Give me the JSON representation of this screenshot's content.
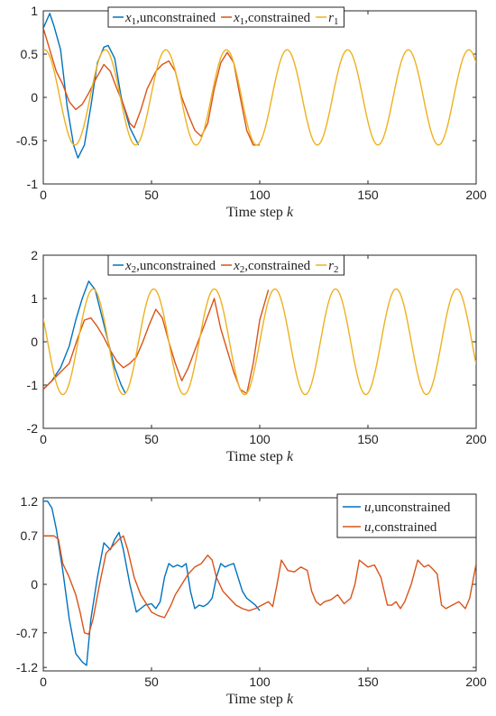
{
  "chart_data": [
    {
      "type": "line",
      "xlabel": "Time step k",
      "xlim": [
        0,
        200
      ],
      "ylim": [
        -1,
        1
      ],
      "xticks": [
        0,
        50,
        100,
        150,
        200
      ],
      "yticks": [
        -1,
        -0.5,
        0,
        0.5,
        1
      ],
      "ytick_labels": [
        "-1",
        "-0.5",
        "0",
        "0.5",
        "1"
      ],
      "legend_position": "top-center",
      "series": [
        {
          "name": "x1,unconstrained",
          "color": "#0072BD",
          "x": [
            0,
            3,
            5,
            8,
            11,
            14,
            16,
            19,
            22,
            25,
            28,
            30,
            33,
            36,
            40,
            44
          ],
          "y": [
            0.8,
            0.97,
            0.82,
            0.55,
            -0.1,
            -0.55,
            -0.7,
            -0.55,
            -0.1,
            0.4,
            0.58,
            0.6,
            0.45,
            0.0,
            -0.35,
            -0.55
          ]
        },
        {
          "name": "x1,constrained",
          "color": "#D95319",
          "x": [
            0,
            3,
            6,
            9,
            12,
            15,
            18,
            21,
            24,
            28,
            31,
            34,
            37,
            40,
            42,
            45,
            48,
            52,
            55,
            58,
            61,
            64,
            67,
            70,
            73,
            76,
            79,
            82,
            85,
            88,
            91,
            94,
            97,
            100
          ],
          "y": [
            0.8,
            0.55,
            0.3,
            0.15,
            -0.05,
            -0.14,
            -0.08,
            0.05,
            0.2,
            0.38,
            0.3,
            0.1,
            -0.08,
            -0.3,
            -0.35,
            -0.15,
            0.1,
            0.3,
            0.38,
            0.42,
            0.3,
            0.0,
            -0.2,
            -0.38,
            -0.45,
            -0.3,
            0.1,
            0.4,
            0.52,
            0.4,
            0.0,
            -0.38,
            -0.55,
            -0.55
          ]
        },
        {
          "name": "r1",
          "color": "#EDB120",
          "sine": true,
          "amplitude": 0.55,
          "period": 28,
          "phase_deg": 82,
          "offset": 0
        }
      ]
    },
    {
      "type": "line",
      "xlabel": "Time step k",
      "xlim": [
        0,
        200
      ],
      "ylim": [
        -2,
        2
      ],
      "xticks": [
        0,
        50,
        100,
        150,
        200
      ],
      "yticks": [
        -2,
        -1,
        0,
        1,
        2
      ],
      "ytick_labels": [
        "-2",
        "-1",
        "0",
        "1",
        "2"
      ],
      "legend_position": "top-center",
      "series": [
        {
          "name": "x2,unconstrained",
          "color": "#0072BD",
          "x": [
            0,
            4,
            8,
            12,
            15,
            18,
            21,
            24,
            27,
            30,
            33,
            36,
            38
          ],
          "y": [
            -1.1,
            -0.9,
            -0.6,
            -0.1,
            0.5,
            1.0,
            1.4,
            1.2,
            0.6,
            0.0,
            -0.6,
            -1.0,
            -1.2
          ]
        },
        {
          "name": "x2,constrained",
          "color": "#D95319",
          "x": [
            0,
            4,
            8,
            12,
            16,
            19,
            22,
            25,
            28,
            31,
            34,
            37,
            40,
            43,
            46,
            49,
            52,
            55,
            58,
            61,
            64,
            67,
            70,
            73,
            76,
            79,
            82,
            85,
            88,
            91,
            94,
            97,
            100,
            104
          ],
          "y": [
            -1.1,
            -0.9,
            -0.7,
            -0.5,
            0.1,
            0.5,
            0.55,
            0.35,
            0.1,
            -0.2,
            -0.45,
            -0.6,
            -0.5,
            -0.35,
            0.0,
            0.4,
            0.75,
            0.55,
            0.0,
            -0.5,
            -0.9,
            -0.6,
            -0.2,
            0.2,
            0.6,
            1.0,
            0.3,
            -0.2,
            -0.7,
            -1.1,
            -1.2,
            -0.5,
            0.5,
            1.2
          ]
        },
        {
          "name": "r2",
          "color": "#EDB120",
          "sine": true,
          "amplitude": 1.22,
          "period": 28,
          "phase_deg": 154,
          "offset": 0
        }
      ]
    },
    {
      "type": "line",
      "xlabel": "Time step k",
      "xlim": [
        0,
        200
      ],
      "ylim": [
        -1.25,
        1.25
      ],
      "xticks": [
        0,
        50,
        100,
        150,
        200
      ],
      "yticks": [
        -1.2,
        -0.7,
        0,
        0.7,
        1.2
      ],
      "ytick_labels": [
        "-1.2",
        "-0.7",
        "0",
        "0.7",
        "1.2"
      ],
      "legend_position": "top-right",
      "series": [
        {
          "name": "u,unconstrained",
          "color": "#0072BD",
          "x": [
            0,
            2,
            4,
            6,
            9,
            12,
            15,
            18,
            20,
            22,
            25,
            28,
            31,
            33,
            35,
            37,
            40,
            43,
            45,
            47,
            50,
            52,
            54,
            56,
            58,
            60,
            62,
            64,
            66,
            68,
            70,
            72,
            74,
            76,
            78,
            80,
            82,
            84,
            86,
            88,
            90,
            92,
            94,
            96,
            98,
            100
          ],
          "y": [
            1.2,
            1.2,
            1.1,
            0.8,
            0.2,
            -0.5,
            -1.0,
            -1.12,
            -1.17,
            -0.5,
            0.1,
            0.6,
            0.5,
            0.65,
            0.75,
            0.5,
            0.0,
            -0.4,
            -0.35,
            -0.3,
            -0.28,
            -0.35,
            -0.25,
            0.1,
            0.3,
            0.25,
            0.28,
            0.25,
            0.3,
            -0.1,
            -0.35,
            -0.3,
            -0.32,
            -0.28,
            -0.2,
            0.1,
            0.3,
            0.25,
            0.28,
            0.3,
            0.1,
            -0.1,
            -0.2,
            -0.25,
            -0.3,
            -0.38
          ]
        },
        {
          "name": "u,constrained",
          "color": "#D95319",
          "x": [
            0,
            2,
            5,
            7,
            9,
            12,
            15,
            17,
            19,
            21,
            23,
            26,
            29,
            32,
            35,
            37,
            39,
            42,
            45,
            48,
            50,
            53,
            56,
            59,
            61,
            64,
            67,
            70,
            73,
            76,
            78,
            80,
            83,
            86,
            89,
            92,
            95,
            98,
            101,
            104,
            106,
            108,
            110,
            113,
            116,
            119,
            122,
            124,
            126,
            128,
            130,
            133,
            136,
            139,
            142,
            144,
            146,
            148,
            150,
            153,
            156,
            159,
            161,
            163,
            165,
            167,
            170,
            173,
            176,
            178,
            180,
            182,
            184,
            186,
            189,
            192,
            195,
            197,
            200
          ],
          "y": [
            0.7,
            0.7,
            0.7,
            0.65,
            0.3,
            0.1,
            -0.15,
            -0.4,
            -0.7,
            -0.72,
            -0.5,
            0.0,
            0.45,
            0.55,
            0.65,
            0.7,
            0.5,
            0.1,
            -0.15,
            -0.3,
            -0.4,
            -0.45,
            -0.48,
            -0.3,
            -0.15,
            0.0,
            0.15,
            0.25,
            0.3,
            0.42,
            0.35,
            0.1,
            -0.1,
            -0.2,
            -0.3,
            -0.35,
            -0.38,
            -0.35,
            -0.3,
            -0.25,
            -0.32,
            0.0,
            0.35,
            0.2,
            0.18,
            0.25,
            0.2,
            -0.1,
            -0.25,
            -0.3,
            -0.25,
            -0.22,
            -0.15,
            -0.28,
            -0.2,
            0.0,
            0.35,
            0.3,
            0.25,
            0.28,
            0.1,
            -0.3,
            -0.3,
            -0.25,
            -0.35,
            -0.25,
            0.0,
            0.35,
            0.25,
            0.28,
            0.22,
            0.15,
            -0.3,
            -0.35,
            -0.3,
            -0.25,
            -0.35,
            -0.2,
            0.3
          ]
        }
      ]
    }
  ]
}
